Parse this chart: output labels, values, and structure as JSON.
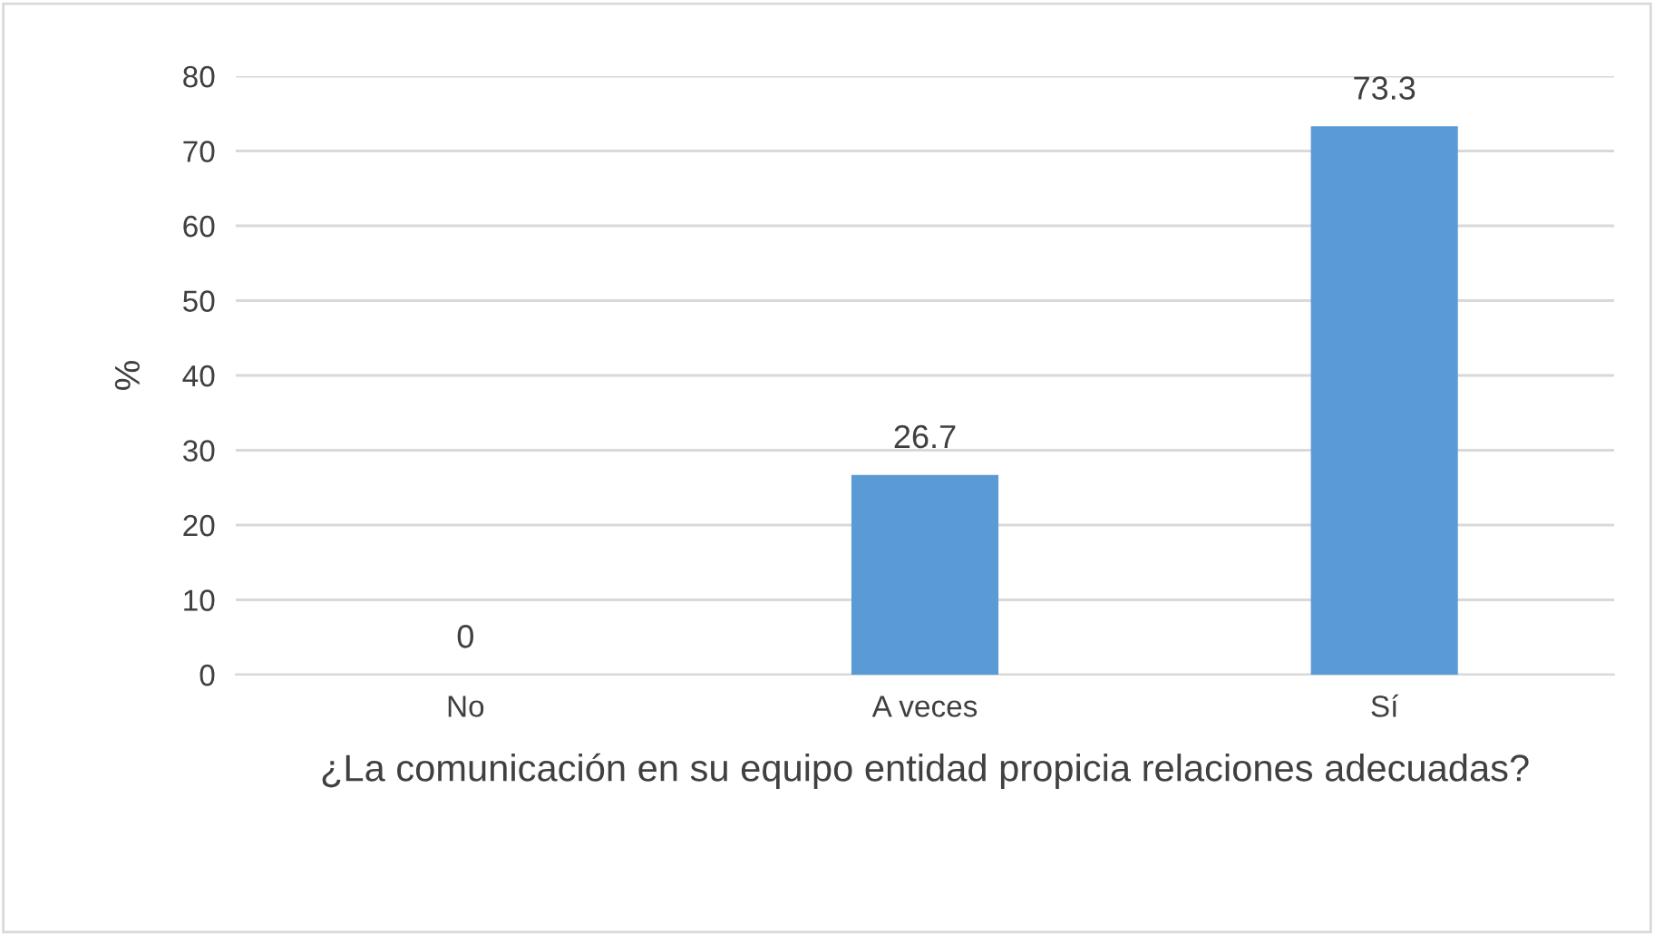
{
  "chart_data": {
    "type": "bar",
    "categories": [
      "No",
      "A veces",
      "Sí"
    ],
    "values": [
      0,
      26.7,
      73.3
    ],
    "color": "#5b9bd5",
    "xlabel": "¿La comunicación en su equipo entidad propicia relaciones adecuadas?",
    "ylabel": "%",
    "ylim": [
      0,
      80
    ],
    "yticks": [
      0,
      10,
      20,
      30,
      40,
      50,
      60,
      70,
      80
    ],
    "grid": "y",
    "data_labels": true
  }
}
